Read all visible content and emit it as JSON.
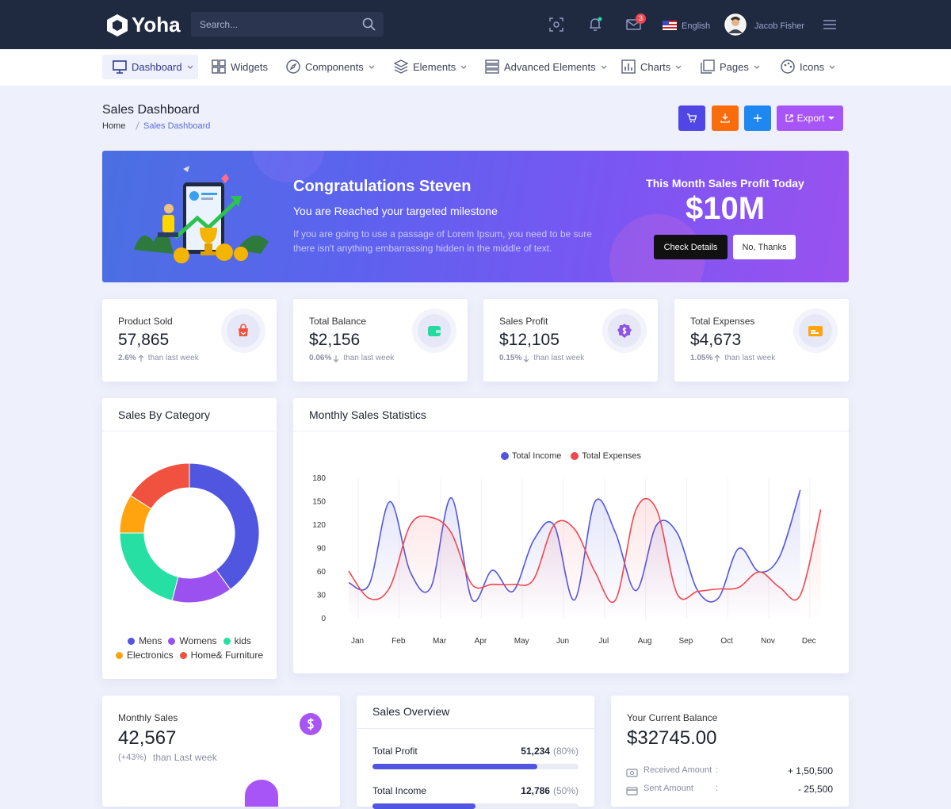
{
  "header": {
    "brand": "Yoha",
    "search_placeholder": "Search...",
    "mail_count": 3,
    "language": "English",
    "user": "Jacob Fisher"
  },
  "nav": [
    "Dashboard",
    "Widgets",
    "Components",
    "Elements",
    "Advanced Elements",
    "Charts",
    "Pages",
    "Icons"
  ],
  "page": {
    "title": "Sales Dashboard",
    "breadcrumb": [
      "Home",
      "Sales Dashboard"
    ],
    "export": "Export"
  },
  "banner": {
    "title": "Congratulations Steven",
    "subtitle": "You are Reached your targeted milestone",
    "text": "If you are going to use a passage of Lorem Ipsum, you need to be sure there isn't anything embarrassing hidden in the middle of text.",
    "profit_label": "This Month Sales Profit Today",
    "profit": "$10M",
    "buttons": [
      "Check Details",
      "No, Thanks"
    ]
  },
  "stats": [
    {
      "label": "Product Sold",
      "value": "57,865",
      "change": "2.6%",
      "trend": "up",
      "note": "than last week",
      "color": "#f0523f"
    },
    {
      "label": "Total Balance",
      "value": "$2,156",
      "change": "0.06%",
      "trend": "down",
      "note": "than last week",
      "color": "#26d9a0"
    },
    {
      "label": "Sales Profit",
      "value": "$12,105",
      "change": "0.15%",
      "trend": "down",
      "note": "than last week",
      "color": "#8e54e9"
    },
    {
      "label": "Total Expenses",
      "value": "$4,673",
      "change": "1.05%",
      "trend": "up",
      "note": "than last week",
      "color": "#ffa30f"
    }
  ],
  "sales_by_category": {
    "title": "Sales By Category",
    "chart": {
      "type": "pie",
      "donut": true,
      "categories": [
        "Mens",
        "Womens",
        "kids",
        "Electronics",
        "Home& Furniture"
      ],
      "values": [
        40,
        14,
        21,
        9,
        16
      ],
      "colors": [
        "#5156e0",
        "#9b51f0",
        "#26e0a3",
        "#ffa30f",
        "#f0523f"
      ]
    }
  },
  "monthly_sales_statistics": {
    "title": "Monthly Sales Statistics",
    "chart": {
      "type": "line",
      "smooth": true,
      "legend": "top",
      "categories": [
        "Jan",
        null,
        "Feb",
        null,
        "Mar",
        null,
        "Apr",
        null,
        "May",
        null,
        "Jun",
        null,
        "Jul",
        null,
        "Aug",
        null,
        "Sep",
        null,
        "Oct",
        null,
        "Nov",
        null,
        "Dec",
        null
      ],
      "series": [
        {
          "name": "Total Income",
          "color": "#5156e0",
          "values": [
            46,
            44,
            150,
            60,
            40,
            155,
            25,
            62,
            35,
            100,
            120,
            24,
            150,
            110,
            36,
            120,
            110,
            36,
            26,
            90,
            60,
            80,
            165,
            null
          ]
        },
        {
          "name": "Total Expenses",
          "color": "#f0474f",
          "values": [
            61,
            26,
            40,
            120,
            130,
            110,
            44,
            44,
            44,
            50,
            120,
            115,
            60,
            24,
            140,
            140,
            32,
            35,
            38,
            40,
            60,
            40,
            30,
            140
          ]
        }
      ],
      "ylim": [
        0,
        180
      ],
      "yticks": [
        0,
        30,
        60,
        90,
        120,
        150,
        180
      ],
      "grid": false
    }
  },
  "monthly_sales": {
    "label": "Monthly Sales",
    "value": "42,567",
    "change": "(+43%)",
    "note": "than Last week"
  },
  "sales_overview": {
    "title": "Sales Overview",
    "items": [
      {
        "label": "Total Profit",
        "value": "51,234",
        "percent": 80,
        "percent_label": "(80%)"
      },
      {
        "label": "Total Income",
        "value": "12,786",
        "percent": 50,
        "percent_label": "(50%)"
      }
    ]
  },
  "balance": {
    "label": "Your Current Balance",
    "value": "$32745.00",
    "separator": ":",
    "items": [
      {
        "label": "Received Amount",
        "amount": "+ 1,50,500"
      },
      {
        "label": "Sent Amount",
        "amount": "- 25,500"
      }
    ]
  }
}
